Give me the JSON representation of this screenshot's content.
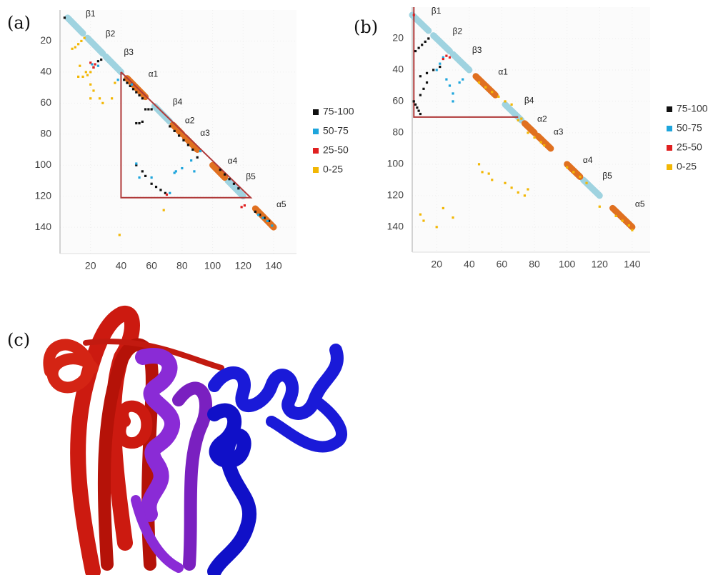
{
  "labels": [
    "(a)",
    "(b)",
    "(c)"
  ],
  "chart_data": [
    {
      "type": "scatter",
      "xlim": [
        0,
        155
      ],
      "ylim": [
        157,
        0
      ],
      "xticks": [
        20,
        40,
        60,
        80,
        100,
        120,
        140
      ],
      "yticks": [
        20,
        40,
        60,
        80,
        100,
        120,
        140
      ],
      "series": [
        {
          "name": "75-100",
          "color": "#111111",
          "x": [
            3,
            22,
            25,
            27,
            42,
            44,
            46,
            48,
            50,
            52,
            54,
            56,
            58,
            60,
            50,
            52,
            54,
            72,
            75,
            78,
            81,
            84,
            87,
            90,
            105,
            108,
            111,
            114,
            117,
            60,
            63,
            66,
            69,
            50,
            54,
            56,
            128,
            131,
            134,
            137
          ],
          "y": [
            5,
            37,
            33,
            32,
            45,
            47,
            49,
            51,
            53,
            55,
            57,
            64,
            64,
            64,
            73,
            73,
            72,
            75,
            78,
            81,
            84,
            87,
            90,
            95,
            103,
            106,
            109,
            112,
            115,
            112,
            114,
            116,
            118,
            100,
            104,
            107,
            130,
            132,
            134,
            136
          ]
        },
        {
          "name": "50-75",
          "color": "#1ea5dc",
          "x": [
            130,
            133,
            136,
            139,
            50,
            52,
            60,
            72,
            76,
            88,
            80,
            75,
            92,
            86,
            38,
            21,
            25,
            47
          ],
          "y": [
            132,
            134,
            136,
            139,
            99,
            108,
            108,
            118,
            104,
            104,
            102,
            105,
            91,
            97,
            45,
            35,
            36,
            48
          ]
        },
        {
          "name": "25-50",
          "color": "#e02020",
          "x": [
            20,
            22,
            23,
            119,
            121,
            70
          ],
          "y": [
            34,
            37,
            35,
            127,
            126,
            119
          ]
        },
        {
          "name": "0-25",
          "color": "#f2b705",
          "x": [
            8,
            10,
            12,
            14,
            16,
            13,
            18,
            20,
            15,
            20,
            22,
            20,
            26,
            28,
            34,
            36,
            17,
            68,
            39,
            12
          ],
          "y": [
            25,
            24,
            22,
            20,
            18,
            36,
            42,
            40,
            43,
            48,
            52,
            57,
            57,
            60,
            57,
            47,
            40,
            129,
            145,
            43
          ]
        }
      ],
      "strands": {
        "color": "#9fd3e0",
        "segments": [
          {
            "label": "β1",
            "start": 5,
            "end": 15
          },
          {
            "label": "β2",
            "start": 18,
            "end": 28
          },
          {
            "label": "β3",
            "start": 30,
            "end": 40
          },
          {
            "label": "β4",
            "start": 62,
            "end": 72
          },
          {
            "label": "β5",
            "start": 110,
            "end": 120
          }
        ]
      },
      "helices": {
        "color": "#e07020",
        "segments": [
          {
            "label": "α1",
            "start": 44,
            "end": 56
          },
          {
            "label": "α2",
            "start": 74,
            "end": 80
          },
          {
            "label": "α3",
            "start": 82,
            "end": 90
          },
          {
            "label": "α4",
            "start": 100,
            "end": 108
          },
          {
            "label": "α5",
            "start": 128,
            "end": 140
          }
        ]
      },
      "highlight": {
        "color": "#b03a3a",
        "x": [
          40,
          40,
          125,
          40
        ],
        "y": [
          40,
          121,
          121,
          40
        ]
      }
    },
    {
      "type": "scatter",
      "xlim": [
        5,
        151
      ],
      "ylim": [
        156,
        0
      ],
      "xticks": [
        20,
        40,
        60,
        80,
        100,
        120,
        140
      ],
      "yticks": [
        20,
        40,
        60,
        80,
        100,
        120,
        140
      ],
      "series": [
        {
          "name": "75-100",
          "color": "#111111",
          "x": [
            7,
            9,
            11,
            13,
            15,
            10,
            14,
            18,
            22,
            6,
            7,
            8,
            9,
            10,
            14,
            12,
            10
          ],
          "y": [
            28,
            26,
            24,
            22,
            20,
            44,
            42,
            40,
            38,
            60,
            62,
            64,
            66,
            68,
            48,
            52,
            56
          ]
        },
        {
          "name": "50-75",
          "color": "#1ea5dc",
          "x": [
            24,
            22,
            20,
            26,
            28,
            30,
            34,
            36,
            30
          ],
          "y": [
            32,
            36,
            40,
            46,
            50,
            60,
            48,
            46,
            55
          ]
        },
        {
          "name": "25-50",
          "color": "#e02020",
          "x": [
            24,
            26,
            28,
            6
          ],
          "y": [
            33,
            31,
            32,
            5
          ]
        },
        {
          "name": "0-25",
          "color": "#f2b705",
          "x": [
            46,
            50,
            54,
            58,
            62,
            66,
            76,
            80,
            84,
            86,
            100,
            104,
            108,
            112,
            120,
            130,
            134,
            138,
            140,
            62,
            66,
            70,
            74,
            76,
            10,
            12,
            20,
            24,
            30,
            46,
            48,
            52,
            54,
            70,
            72
          ],
          "y": [
            48,
            51,
            54,
            57,
            60,
            62,
            80,
            83,
            86,
            88,
            102,
            105,
            108,
            112,
            127,
            133,
            136,
            139,
            142,
            112,
            115,
            118,
            120,
            116,
            132,
            136,
            140,
            128,
            134,
            100,
            105,
            106,
            110,
            72,
            71
          ]
        }
      ],
      "strands": {
        "color": "#9fd3e0",
        "segments": [
          {
            "label": "β1",
            "start": 5,
            "end": 15
          },
          {
            "label": "β2",
            "start": 18,
            "end": 28
          },
          {
            "label": "β3",
            "start": 30,
            "end": 40
          },
          {
            "label": "β4",
            "start": 62,
            "end": 72
          },
          {
            "label": "β5",
            "start": 110,
            "end": 120
          }
        ]
      },
      "helices": {
        "color": "#e07020",
        "segments": [
          {
            "label": "α1",
            "start": 44,
            "end": 56
          },
          {
            "label": "α2",
            "start": 74,
            "end": 80
          },
          {
            "label": "α3",
            "start": 82,
            "end": 90
          },
          {
            "label": "α4",
            "start": 100,
            "end": 108
          },
          {
            "label": "α5",
            "start": 128,
            "end": 140
          }
        ]
      },
      "highlight": {
        "color": "#b03a3a",
        "x": [
          6,
          6,
          70
        ],
        "y": [
          0,
          70,
          70
        ]
      }
    }
  ]
}
